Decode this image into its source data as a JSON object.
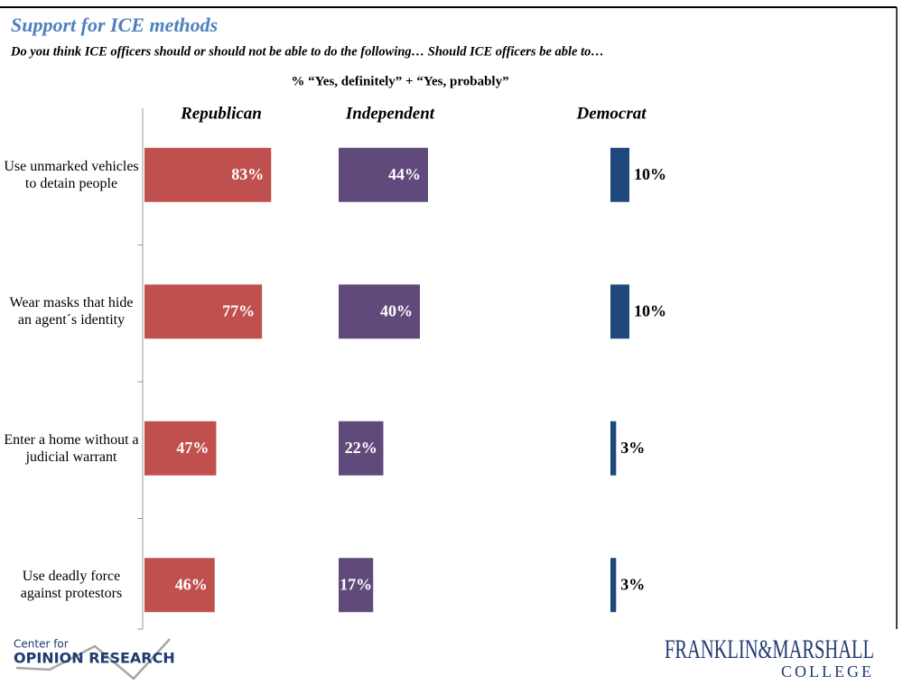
{
  "chart_data": {
    "type": "bar",
    "orientation": "horizontal",
    "title": "Support for ICE methods",
    "subtitle": "Do you think ICE officers should or should not be able to do the following… Should ICE officers be able to…",
    "annotation": "% “Yes, definitely” + “Yes, probably”",
    "categories": [
      "Use unmarked vehicles to detain people",
      "Wear masks that hide an agent´s identity",
      "Enter a home without a judicial warrant",
      "Use deadly force against protestors"
    ],
    "xlim": [
      0,
      100
    ],
    "series": [
      {
        "name": "Republican",
        "color": "#c0504d",
        "values": [
          83,
          77,
          47,
          46
        ],
        "value_labels": [
          "83%",
          "77%",
          "47%",
          "46%"
        ],
        "label_position": "inside"
      },
      {
        "name": "Independent",
        "color": "#604a7b",
        "values": [
          44,
          40,
          22,
          17
        ],
        "value_labels": [
          "44%",
          "40%",
          "22%",
          "17%"
        ],
        "label_position": "inside"
      },
      {
        "name": "Democrat",
        "color": "#1f497d",
        "values": [
          10,
          10,
          3,
          3
        ],
        "value_labels": [
          "10%",
          "10%",
          "3%",
          "3%"
        ],
        "label_position": "outside"
      }
    ]
  },
  "logos": {
    "left_top": "Center for",
    "left_bottom": "OPINION RESEARCH",
    "right_top": "FRANKLIN&MARSHALL",
    "right_bottom": "COLLEGE"
  }
}
